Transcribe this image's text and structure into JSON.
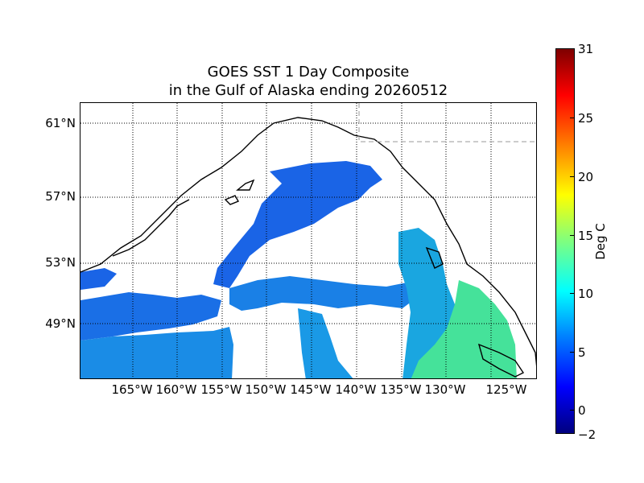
{
  "title": {
    "line1": "GOES SST 1 Day Composite",
    "line2": "in the Gulf of Alaska ending 20260512"
  },
  "latitude_labels": [
    "61°N",
    "57°N",
    "53°N",
    "49°N"
  ],
  "longitude_labels": [
    "165°W",
    "160°W",
    "155°W",
    "150°W",
    "145°W",
    "140°W",
    "135°W",
    "130°W",
    "125°W"
  ],
  "colorbar": {
    "label": "Deg C",
    "ticks": [
      "31",
      "25",
      "20",
      "15",
      "10",
      "5",
      "0",
      "−2"
    ],
    "min": -2,
    "max": 31,
    "colormap": "jet"
  },
  "colors": {
    "cold_water": "#1a64e6",
    "mid_water": "#1a9fe6",
    "warm_water": "#40e68a",
    "land_outline": "#000000",
    "no_data": "#ffffff"
  }
}
